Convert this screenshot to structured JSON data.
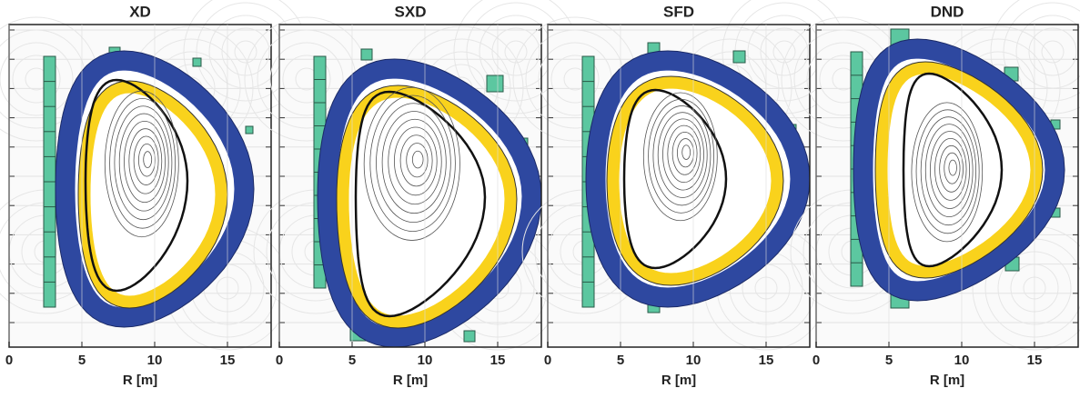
{
  "panels": [
    {
      "title": "XD",
      "xlabel": "R [m]",
      "xlim": [
        0,
        18
      ],
      "xticks": [
        0,
        5,
        10,
        15
      ]
    },
    {
      "title": "SXD",
      "xlabel": "R [m]",
      "xlim": [
        0,
        18
      ],
      "xticks": [
        0,
        5,
        10,
        15
      ]
    },
    {
      "title": "SFD",
      "xlabel": "R [m]",
      "xlim": [
        0,
        18
      ],
      "xticks": [
        0,
        5,
        10,
        15
      ]
    },
    {
      "title": "DND",
      "xlabel": "R [m]",
      "xlim": [
        0,
        18
      ],
      "xticks": [
        0,
        5,
        10,
        15
      ]
    }
  ]
}
